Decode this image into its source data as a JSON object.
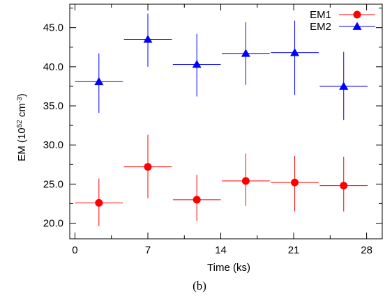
{
  "chart_data": {
    "type": "scatter",
    "xlabel": "Time (ks)",
    "ylabel": {
      "prefix": "EM (10",
      "sup1": "52",
      "mid": " cm",
      "sup2": "-3",
      "suffix": ")"
    },
    "xlim": [
      -0.5,
      29.5
    ],
    "ylim": [
      18.0,
      48.0
    ],
    "xticks": [
      0,
      7,
      14,
      21,
      28
    ],
    "yticks": [
      20.0,
      25.0,
      30.0,
      35.0,
      40.0,
      45.0
    ],
    "ytick_labels": [
      "20.0",
      "25.0",
      "30.0",
      "35.0",
      "40.0",
      "45.0"
    ],
    "grid": false,
    "legend": "top-right",
    "caption": "(b)",
    "series": [
      {
        "name": "EM1",
        "marker": "circle",
        "color": "#ff0000",
        "points": [
          {
            "x": 2.3,
            "y": 22.6,
            "xerr": 2.3,
            "ylo": 19.6,
            "yhi": 25.7
          },
          {
            "x": 7.0,
            "y": 27.2,
            "xerr": 2.3,
            "ylo": 23.2,
            "yhi": 31.3
          },
          {
            "x": 11.7,
            "y": 23.0,
            "xerr": 2.3,
            "ylo": 20.3,
            "yhi": 26.2
          },
          {
            "x": 16.4,
            "y": 25.4,
            "xerr": 2.3,
            "ylo": 22.2,
            "yhi": 28.9
          },
          {
            "x": 21.1,
            "y": 25.2,
            "xerr": 2.3,
            "ylo": 21.5,
            "yhi": 28.6
          },
          {
            "x": 25.8,
            "y": 24.8,
            "xerr": 2.3,
            "ylo": 21.5,
            "yhi": 28.5
          }
        ]
      },
      {
        "name": "EM2",
        "marker": "triangle",
        "color": "#0000ff",
        "points": [
          {
            "x": 2.3,
            "y": 38.1,
            "xerr": 2.3,
            "ylo": 34.1,
            "yhi": 41.7
          },
          {
            "x": 7.0,
            "y": 43.5,
            "xerr": 2.3,
            "ylo": 40.0,
            "yhi": 46.8
          },
          {
            "x": 11.7,
            "y": 40.3,
            "xerr": 2.3,
            "ylo": 36.2,
            "yhi": 44.2
          },
          {
            "x": 16.4,
            "y": 41.7,
            "xerr": 2.3,
            "ylo": 37.7,
            "yhi": 45.7
          },
          {
            "x": 21.1,
            "y": 41.8,
            "xerr": 2.3,
            "ylo": 36.4,
            "yhi": 45.9
          },
          {
            "x": 25.8,
            "y": 37.5,
            "xerr": 2.3,
            "ylo": 33.2,
            "yhi": 41.9
          }
        ]
      }
    ]
  }
}
